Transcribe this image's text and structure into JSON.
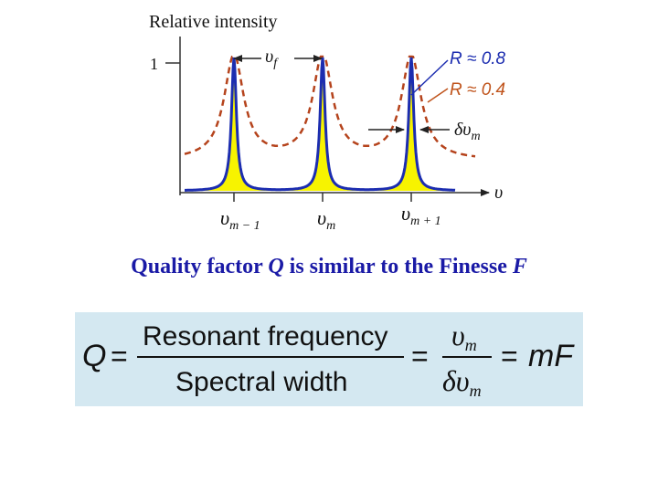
{
  "diagram": {
    "y_axis_label": "Relative intensity",
    "y_tick": "1",
    "x_axis_var": "υ",
    "peak_labels": [
      {
        "main": "υ",
        "sub": "m − 1"
      },
      {
        "main": "υ",
        "sub": "m"
      },
      {
        "main": "υ",
        "sub": "m + 1"
      }
    ],
    "spacing_label": {
      "main": "υ",
      "sub": "f"
    },
    "legend": [
      {
        "text": "R ≈ 0.8",
        "color": "#1c2db0"
      },
      {
        "text": "R ≈ 0.4",
        "color": "#c0541c"
      }
    ],
    "width_label": {
      "main": "δυ",
      "sub": "m"
    },
    "colors": {
      "high_R_curve": "#1c2db0",
      "low_R_curve": "#b5431c",
      "fill": "#f7f300",
      "axis": "#333333"
    }
  },
  "caption": {
    "prefix": "Quality factor ",
    "symbol_q": "Q",
    "middle": " is similar to the Finesse ",
    "symbol_f": "F"
  },
  "formula": {
    "lhs": "Q",
    "equals": "=",
    "numerator_text": "Resonant frequency",
    "denominator_text": "Spectral width",
    "ratio_num": {
      "main": "υ",
      "sub": "m"
    },
    "ratio_den": {
      "main": "δυ",
      "sub": "m"
    },
    "result": "mF",
    "box_color": "#d4e8f1"
  }
}
